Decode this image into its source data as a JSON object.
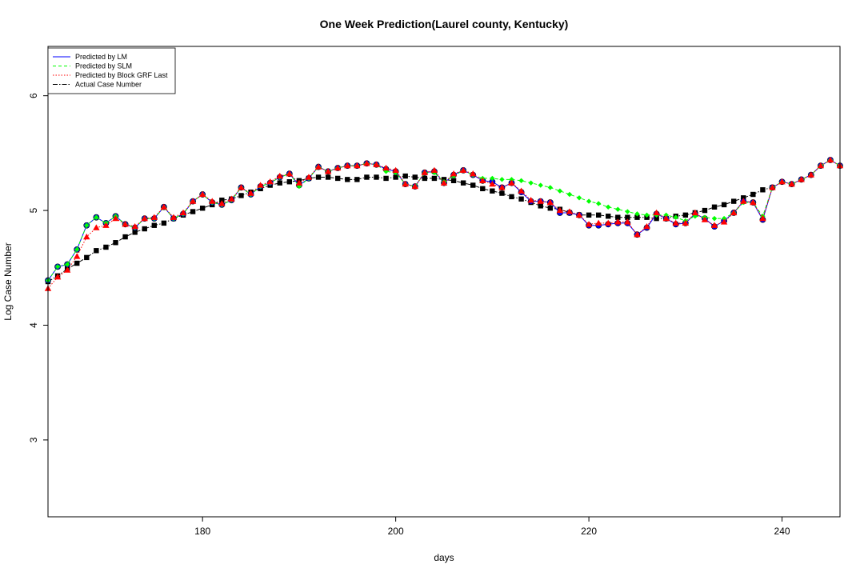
{
  "chart_data": {
    "type": "line",
    "title": "One Week Prediction(Laurel county, Kentucky)",
    "xlabel": "days",
    "ylabel": "Log Case Number",
    "xlim": [
      164,
      246
    ],
    "ylim": [
      2.33,
      6.43
    ],
    "x_ticks": [
      180,
      200,
      220,
      240
    ],
    "y_ticks": [
      3,
      4,
      5,
      6
    ],
    "grid": false,
    "legend_position": "top-left",
    "x": [
      164,
      165,
      166,
      167,
      168,
      169,
      170,
      171,
      172,
      173,
      174,
      175,
      176,
      177,
      178,
      179,
      180,
      181,
      182,
      183,
      184,
      185,
      186,
      187,
      188,
      189,
      190,
      191,
      192,
      193,
      194,
      195,
      196,
      197,
      198,
      199,
      200,
      201,
      202,
      203,
      204,
      205,
      206,
      207,
      208,
      209,
      210,
      211,
      212,
      213,
      214,
      215,
      216,
      217,
      218,
      219,
      220,
      221,
      222,
      223,
      224,
      225,
      226,
      227,
      228,
      229,
      230,
      231,
      232,
      233,
      234,
      235,
      236,
      237,
      238,
      239,
      240,
      241,
      242,
      243,
      244,
      245,
      246
    ],
    "series": [
      {
        "name": "Predicted by LM",
        "color": "#0000ff",
        "line_style": "solid",
        "marker": "circle",
        "values": [
          4.39,
          4.51,
          4.53,
          4.66,
          4.87,
          4.94,
          4.89,
          4.95,
          4.88,
          4.85,
          4.93,
          4.93,
          5.03,
          4.93,
          4.97,
          5.08,
          5.14,
          5.07,
          5.05,
          5.09,
          5.2,
          5.14,
          5.21,
          5.24,
          5.29,
          5.32,
          5.22,
          5.28,
          5.38,
          5.34,
          5.37,
          5.39,
          5.39,
          5.41,
          5.4,
          5.36,
          5.34,
          5.23,
          5.21,
          5.33,
          5.34,
          5.24,
          5.31,
          5.35,
          5.31,
          5.26,
          5.25,
          5.2,
          5.24,
          5.16,
          5.08,
          5.08,
          5.07,
          4.98,
          4.98,
          4.96,
          4.87,
          4.87,
          4.88,
          4.89,
          4.89,
          4.79,
          4.85,
          4.97,
          4.93,
          4.88,
          4.89,
          4.97,
          4.93,
          4.86,
          4.91,
          4.98,
          5.08,
          5.07,
          4.92,
          5.2,
          5.25,
          5.23,
          5.27,
          5.31,
          5.39,
          5.44,
          5.39
        ]
      },
      {
        "name": "Predicted by SLM",
        "color": "#00ff00",
        "line_style": "dashed",
        "marker": "diamond",
        "values": [
          4.39,
          4.51,
          4.53,
          4.66,
          4.87,
          4.94,
          4.89,
          4.95,
          4.88,
          4.85,
          4.93,
          4.93,
          5.03,
          4.93,
          4.97,
          5.08,
          5.14,
          5.07,
          5.05,
          5.09,
          5.2,
          5.14,
          5.21,
          5.24,
          5.29,
          5.32,
          5.21,
          5.28,
          5.38,
          5.34,
          5.37,
          5.39,
          5.39,
          5.41,
          5.4,
          5.34,
          5.33,
          5.23,
          5.21,
          5.33,
          5.33,
          5.25,
          5.3,
          5.35,
          5.31,
          5.28,
          5.28,
          5.27,
          5.27,
          5.26,
          5.24,
          5.22,
          5.2,
          5.17,
          5.14,
          5.11,
          5.08,
          5.06,
          5.03,
          5.01,
          4.99,
          4.97,
          4.96,
          4.96,
          4.96,
          4.94,
          4.91,
          4.95,
          4.94,
          4.93,
          4.93,
          4.98,
          5.07,
          5.07,
          4.95,
          5.2,
          5.25,
          5.23,
          5.27,
          5.31,
          5.39,
          5.44,
          5.39
        ]
      },
      {
        "name": "Predicted by Block GRF Last",
        "color": "#ff0000",
        "line_style": "dotted",
        "marker": "triangle",
        "values": [
          4.32,
          4.42,
          4.48,
          4.6,
          4.77,
          4.85,
          4.87,
          4.93,
          4.88,
          4.86,
          4.93,
          4.94,
          5.03,
          4.94,
          4.98,
          5.08,
          5.14,
          5.08,
          5.06,
          5.1,
          5.2,
          5.15,
          5.22,
          5.25,
          5.3,
          5.32,
          5.24,
          5.29,
          5.38,
          5.34,
          5.37,
          5.39,
          5.39,
          5.41,
          5.4,
          5.37,
          5.35,
          5.23,
          5.21,
          5.33,
          5.35,
          5.24,
          5.32,
          5.35,
          5.32,
          5.26,
          5.23,
          5.2,
          5.24,
          5.17,
          5.09,
          5.08,
          5.07,
          5.0,
          4.99,
          4.96,
          4.88,
          4.89,
          4.89,
          4.9,
          4.9,
          4.79,
          4.86,
          4.98,
          4.93,
          4.89,
          4.89,
          4.98,
          4.92,
          4.87,
          4.9,
          4.98,
          5.08,
          5.07,
          4.93,
          5.2,
          5.25,
          5.23,
          5.27,
          5.31,
          5.39,
          5.44,
          5.39
        ]
      },
      {
        "name": "Actual Case Number",
        "color": "#000000",
        "line_style": "dashdot",
        "marker": "square",
        "values": [
          4.38,
          4.43,
          4.49,
          4.54,
          4.59,
          4.65,
          4.68,
          4.72,
          4.77,
          4.81,
          4.84,
          4.87,
          4.89,
          4.93,
          4.96,
          4.99,
          5.02,
          5.05,
          5.09,
          5.1,
          5.13,
          5.16,
          5.19,
          5.22,
          5.24,
          5.25,
          5.26,
          5.28,
          5.29,
          5.29,
          5.28,
          5.27,
          5.27,
          5.29,
          5.29,
          5.28,
          5.29,
          5.3,
          5.29,
          5.28,
          5.28,
          5.27,
          5.26,
          5.24,
          5.22,
          5.19,
          5.17,
          5.15,
          5.12,
          5.1,
          5.07,
          5.04,
          5.02,
          5.01,
          4.98,
          4.96,
          4.96,
          4.96,
          4.95,
          4.94,
          4.94,
          4.94,
          4.94,
          4.93,
          4.93,
          4.95,
          4.96,
          4.98,
          5.0,
          5.03,
          5.05,
          5.08,
          5.11,
          5.14,
          5.18,
          5.2,
          null,
          null,
          null,
          null,
          null,
          null,
          null
        ]
      }
    ]
  }
}
